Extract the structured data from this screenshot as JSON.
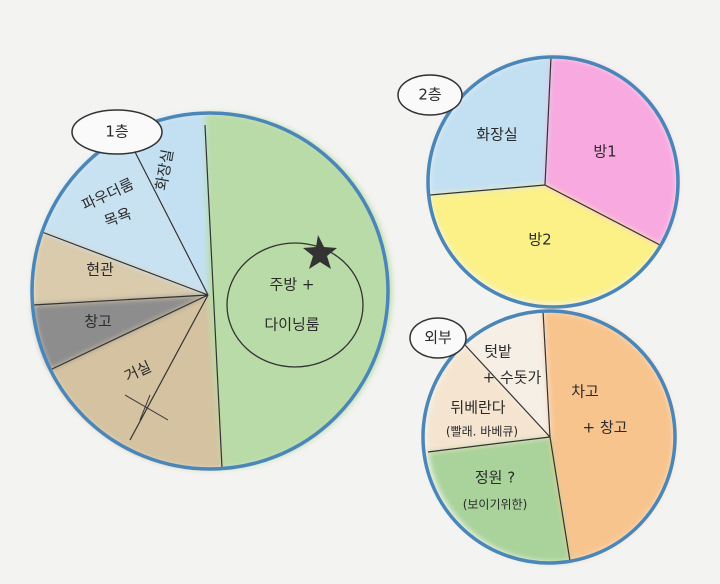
{
  "floors": [
    {
      "label": "1층",
      "rooms": [
        {
          "lines": [
            "화장실"
          ]
        },
        {
          "lines": [
            "파우더룸",
            "목욕"
          ]
        },
        {
          "lines": [
            "현관"
          ]
        },
        {
          "lines": [
            "창고"
          ]
        },
        {
          "lines": [
            "거실"
          ]
        },
        {
          "lines": [
            "주방 +",
            "다이닝룸"
          ]
        }
      ]
    },
    {
      "label": "2층",
      "rooms": [
        {
          "lines": [
            "화장실"
          ]
        },
        {
          "lines": [
            "방1"
          ]
        },
        {
          "lines": [
            "방2"
          ]
        }
      ]
    },
    {
      "label": "외부",
      "rooms": [
        {
          "lines": [
            "텃밭",
            "+ 수돗가"
          ]
        },
        {
          "lines": [
            "뒤베란다",
            "(빨래. 바베큐)"
          ]
        },
        {
          "lines": [
            "정원 ?",
            "(보이기위한)"
          ]
        },
        {
          "lines": [
            "차고",
            "+ 창고"
          ]
        }
      ]
    }
  ]
}
